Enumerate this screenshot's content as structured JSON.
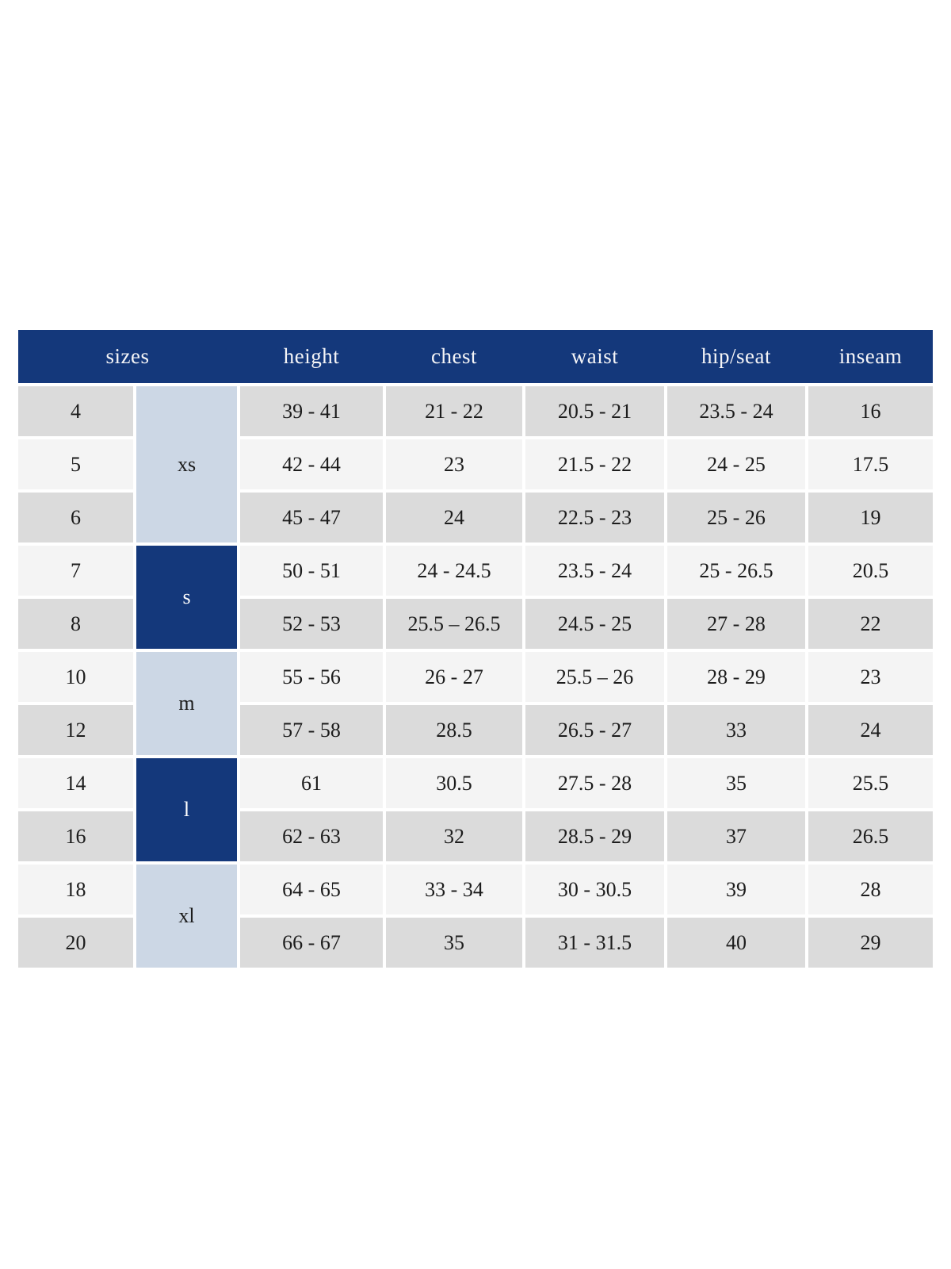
{
  "table": {
    "header": {
      "sizes": "sizes",
      "height": "height",
      "chest": "chest",
      "waist": "waist",
      "hip_seat": "hip/seat",
      "inseam": "inseam"
    },
    "groups": [
      {
        "label": "xs",
        "rows": 3,
        "variant": "light"
      },
      {
        "label": "s",
        "rows": 2,
        "variant": "dark"
      },
      {
        "label": "m",
        "rows": 2,
        "variant": "light"
      },
      {
        "label": "l",
        "rows": 2,
        "variant": "dark"
      },
      {
        "label": "xl",
        "rows": 2,
        "variant": "light"
      }
    ],
    "rows": [
      {
        "size": "4",
        "height": "39 - 41",
        "chest": "21 - 22",
        "waist": "20.5 - 21",
        "hip_seat": "23.5 - 24",
        "inseam": "16"
      },
      {
        "size": "5",
        "height": "42 - 44",
        "chest": "23",
        "waist": "21.5 - 22",
        "hip_seat": "24 - 25",
        "inseam": "17.5"
      },
      {
        "size": "6",
        "height": "45 - 47",
        "chest": "24",
        "waist": "22.5 - 23",
        "hip_seat": "25 - 26",
        "inseam": "19"
      },
      {
        "size": "7",
        "height": "50 - 51",
        "chest": "24 - 24.5",
        "waist": "23.5 - 24",
        "hip_seat": "25 - 26.5",
        "inseam": "20.5"
      },
      {
        "size": "8",
        "height": "52 - 53",
        "chest": "25.5 – 26.5",
        "waist": "24.5 - 25",
        "hip_seat": "27 - 28",
        "inseam": "22"
      },
      {
        "size": "10",
        "height": "55 - 56",
        "chest": "26 - 27",
        "waist": "25.5 – 26",
        "hip_seat": "28 - 29",
        "inseam": "23"
      },
      {
        "size": "12",
        "height": "57 - 58",
        "chest": "28.5",
        "waist": "26.5 - 27",
        "hip_seat": "33",
        "inseam": "24"
      },
      {
        "size": "14",
        "height": "61",
        "chest": "30.5",
        "waist": "27.5 - 28",
        "hip_seat": "35",
        "inseam": "25.5"
      },
      {
        "size": "16",
        "height": "62 - 63",
        "chest": "32",
        "waist": "28.5 - 29",
        "hip_seat": "37",
        "inseam": "26.5"
      },
      {
        "size": "18",
        "height": "64 - 65",
        "chest": "33 - 34",
        "waist": "30 - 30.5",
        "hip_seat": "39",
        "inseam": "28"
      },
      {
        "size": "20",
        "height": "66 - 67",
        "chest": "35",
        "waist": "31 - 31.5",
        "hip_seat": "40",
        "inseam": "29"
      }
    ],
    "colors": {
      "header_bg": "#14387b",
      "header_text": "#f5f5f7",
      "group_light_bg": "#ccd7e5",
      "group_dark_bg": "#14387b",
      "group_dark_text": "#ffffff",
      "row_gray": "#dbdbdb",
      "row_light": "#f4f4f4",
      "text": "#1c1c1c"
    }
  }
}
